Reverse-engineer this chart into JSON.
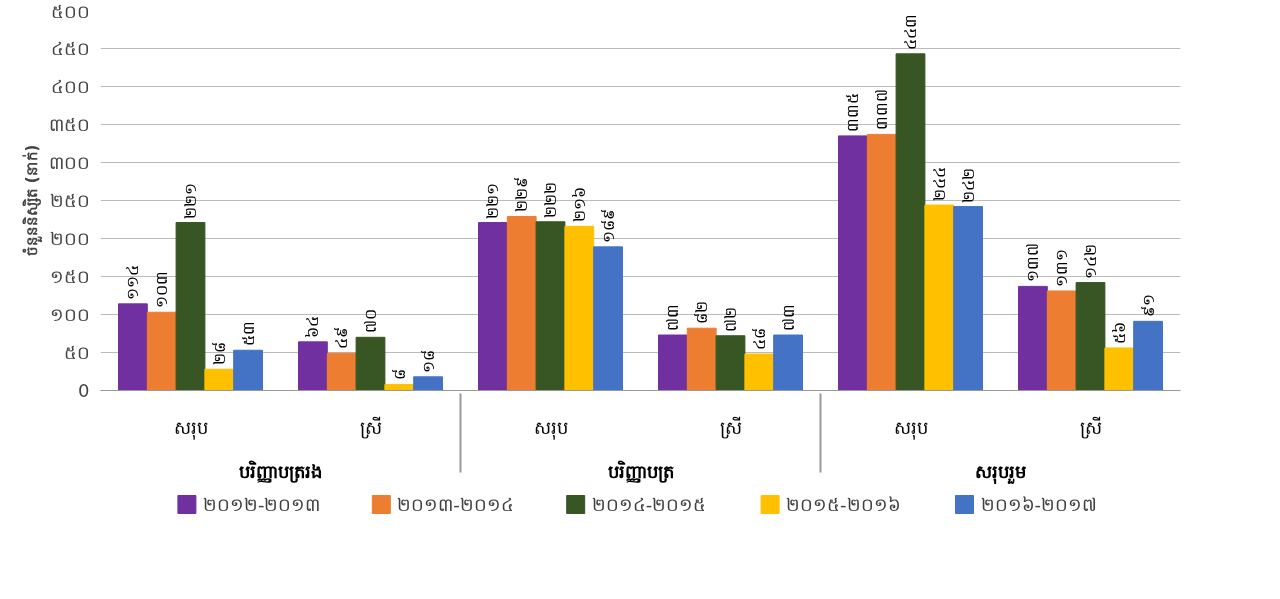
{
  "chart_data": {
    "type": "bar",
    "ylabel": "ចំនួននិស្សិត (នាក់)",
    "categories": [
      "សរុប",
      "ស្រី",
      "សរុប",
      "ស្រី",
      "សរុប",
      "ស្រី"
    ],
    "annotations": [
      "បរិញ្ញាបត្ររង",
      "បរិញ្ញាបត្រ",
      "សរុបរួម"
    ],
    "series": [
      {
        "name": "២០១២-២០១៣",
        "color": "#7030a0",
        "values": [
          114,
          64,
          221,
          73,
          335,
          137
        ],
        "value_labels": [
          "១១៤",
          "៦៤",
          "២២១",
          "៧៣",
          "៣៣៥",
          "១៣៧"
        ]
      },
      {
        "name": "២០១៣-២០១៤",
        "color": "#ed7d31",
        "values": [
          103,
          49,
          229,
          82,
          337,
          131
        ],
        "value_labels": [
          "១០៣",
          "៤៩",
          "២២៩",
          "៨២",
          "៣៣៧",
          "១៣១"
        ]
      },
      {
        "name": "២០១៤-២០១៥",
        "color": "#375623",
        "values": [
          221,
          70,
          222,
          72,
          443,
          142
        ],
        "value_labels": [
          "២២១",
          "៧០",
          "២២២",
          "៧២",
          "៤៤៣",
          "១៤២"
        ]
      },
      {
        "name": "២០១៥-២០១៦",
        "color": "#ffc000",
        "values": [
          28,
          8,
          216,
          48,
          244,
          56
        ],
        "value_labels": [
          "២៨",
          "៨",
          "២១៦",
          "៤៨",
          "២៤៤",
          "៥៦"
        ]
      },
      {
        "name": "២០១៦-២០១៧",
        "color": "#4472c4",
        "values": [
          53,
          18,
          189,
          73,
          242,
          91
        ],
        "value_labels": [
          "៥៣",
          "១៨",
          "១៨៩",
          "៧៣",
          "២៤២",
          "៩១"
        ]
      }
    ],
    "ylim": [
      0,
      500
    ],
    "yticks": [
      {
        "value": 0,
        "label": "0"
      },
      {
        "value": 50,
        "label": "៥០"
      },
      {
        "value": 100,
        "label": "១០០"
      },
      {
        "value": 150,
        "label": "១៥០"
      },
      {
        "value": 200,
        "label": "២០០"
      },
      {
        "value": 250,
        "label": "២៥០"
      },
      {
        "value": 300,
        "label": "៣០០"
      },
      {
        "value": 350,
        "label": "៣៥០"
      },
      {
        "value": 400,
        "label": "៤០០"
      },
      {
        "value": 450,
        "label": "៤៥០"
      },
      {
        "value": 500,
        "label": "៥០០"
      }
    ],
    "grid": "y",
    "legend": "bottom"
  }
}
